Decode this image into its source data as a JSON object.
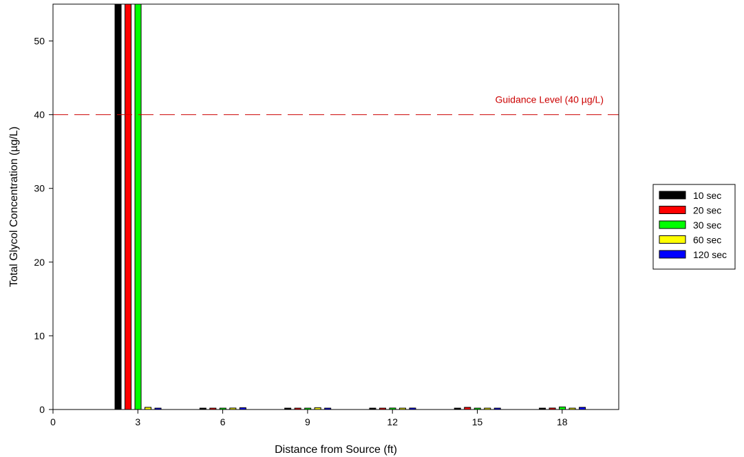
{
  "chart_data": {
    "type": "bar",
    "xlabel": "Distance from Source (ft)",
    "ylabel": "Total Glycol Concentration (µg/L)",
    "xlim": [
      0,
      20
    ],
    "ylim": [
      0,
      55
    ],
    "x_ticks": [
      0,
      3,
      6,
      9,
      12,
      15,
      18
    ],
    "y_ticks": [
      0,
      10,
      20,
      30,
      40,
      50
    ],
    "categories": [
      3,
      6,
      9,
      12,
      15,
      18
    ],
    "series": [
      {
        "name": "10 sec",
        "color": "#000000",
        "values": [
          55,
          0.15,
          0.1,
          0.15,
          0.1,
          0.15
        ]
      },
      {
        "name": "20 sec",
        "color": "#ff0000",
        "values": [
          55,
          0.15,
          0.1,
          0.15,
          0.3,
          0.2
        ]
      },
      {
        "name": "30 sec",
        "color": "#00ff00",
        "values": [
          55,
          0.15,
          0.15,
          0.2,
          0.15,
          0.35
        ]
      },
      {
        "name": "60 sec",
        "color": "#ffff00",
        "values": [
          0.3,
          0.2,
          0.25,
          0.15,
          0.15,
          0.15
        ]
      },
      {
        "name": "120 sec",
        "color": "#0000ff",
        "values": [
          0.15,
          0.25,
          0.15,
          0.2,
          0.1,
          0.3
        ]
      }
    ],
    "reference_line": {
      "value": 40,
      "label": "Guidance Level (40 µg/L)",
      "color": "#cc0000",
      "style": "dashed"
    },
    "grid": false,
    "legend_position": "right"
  }
}
